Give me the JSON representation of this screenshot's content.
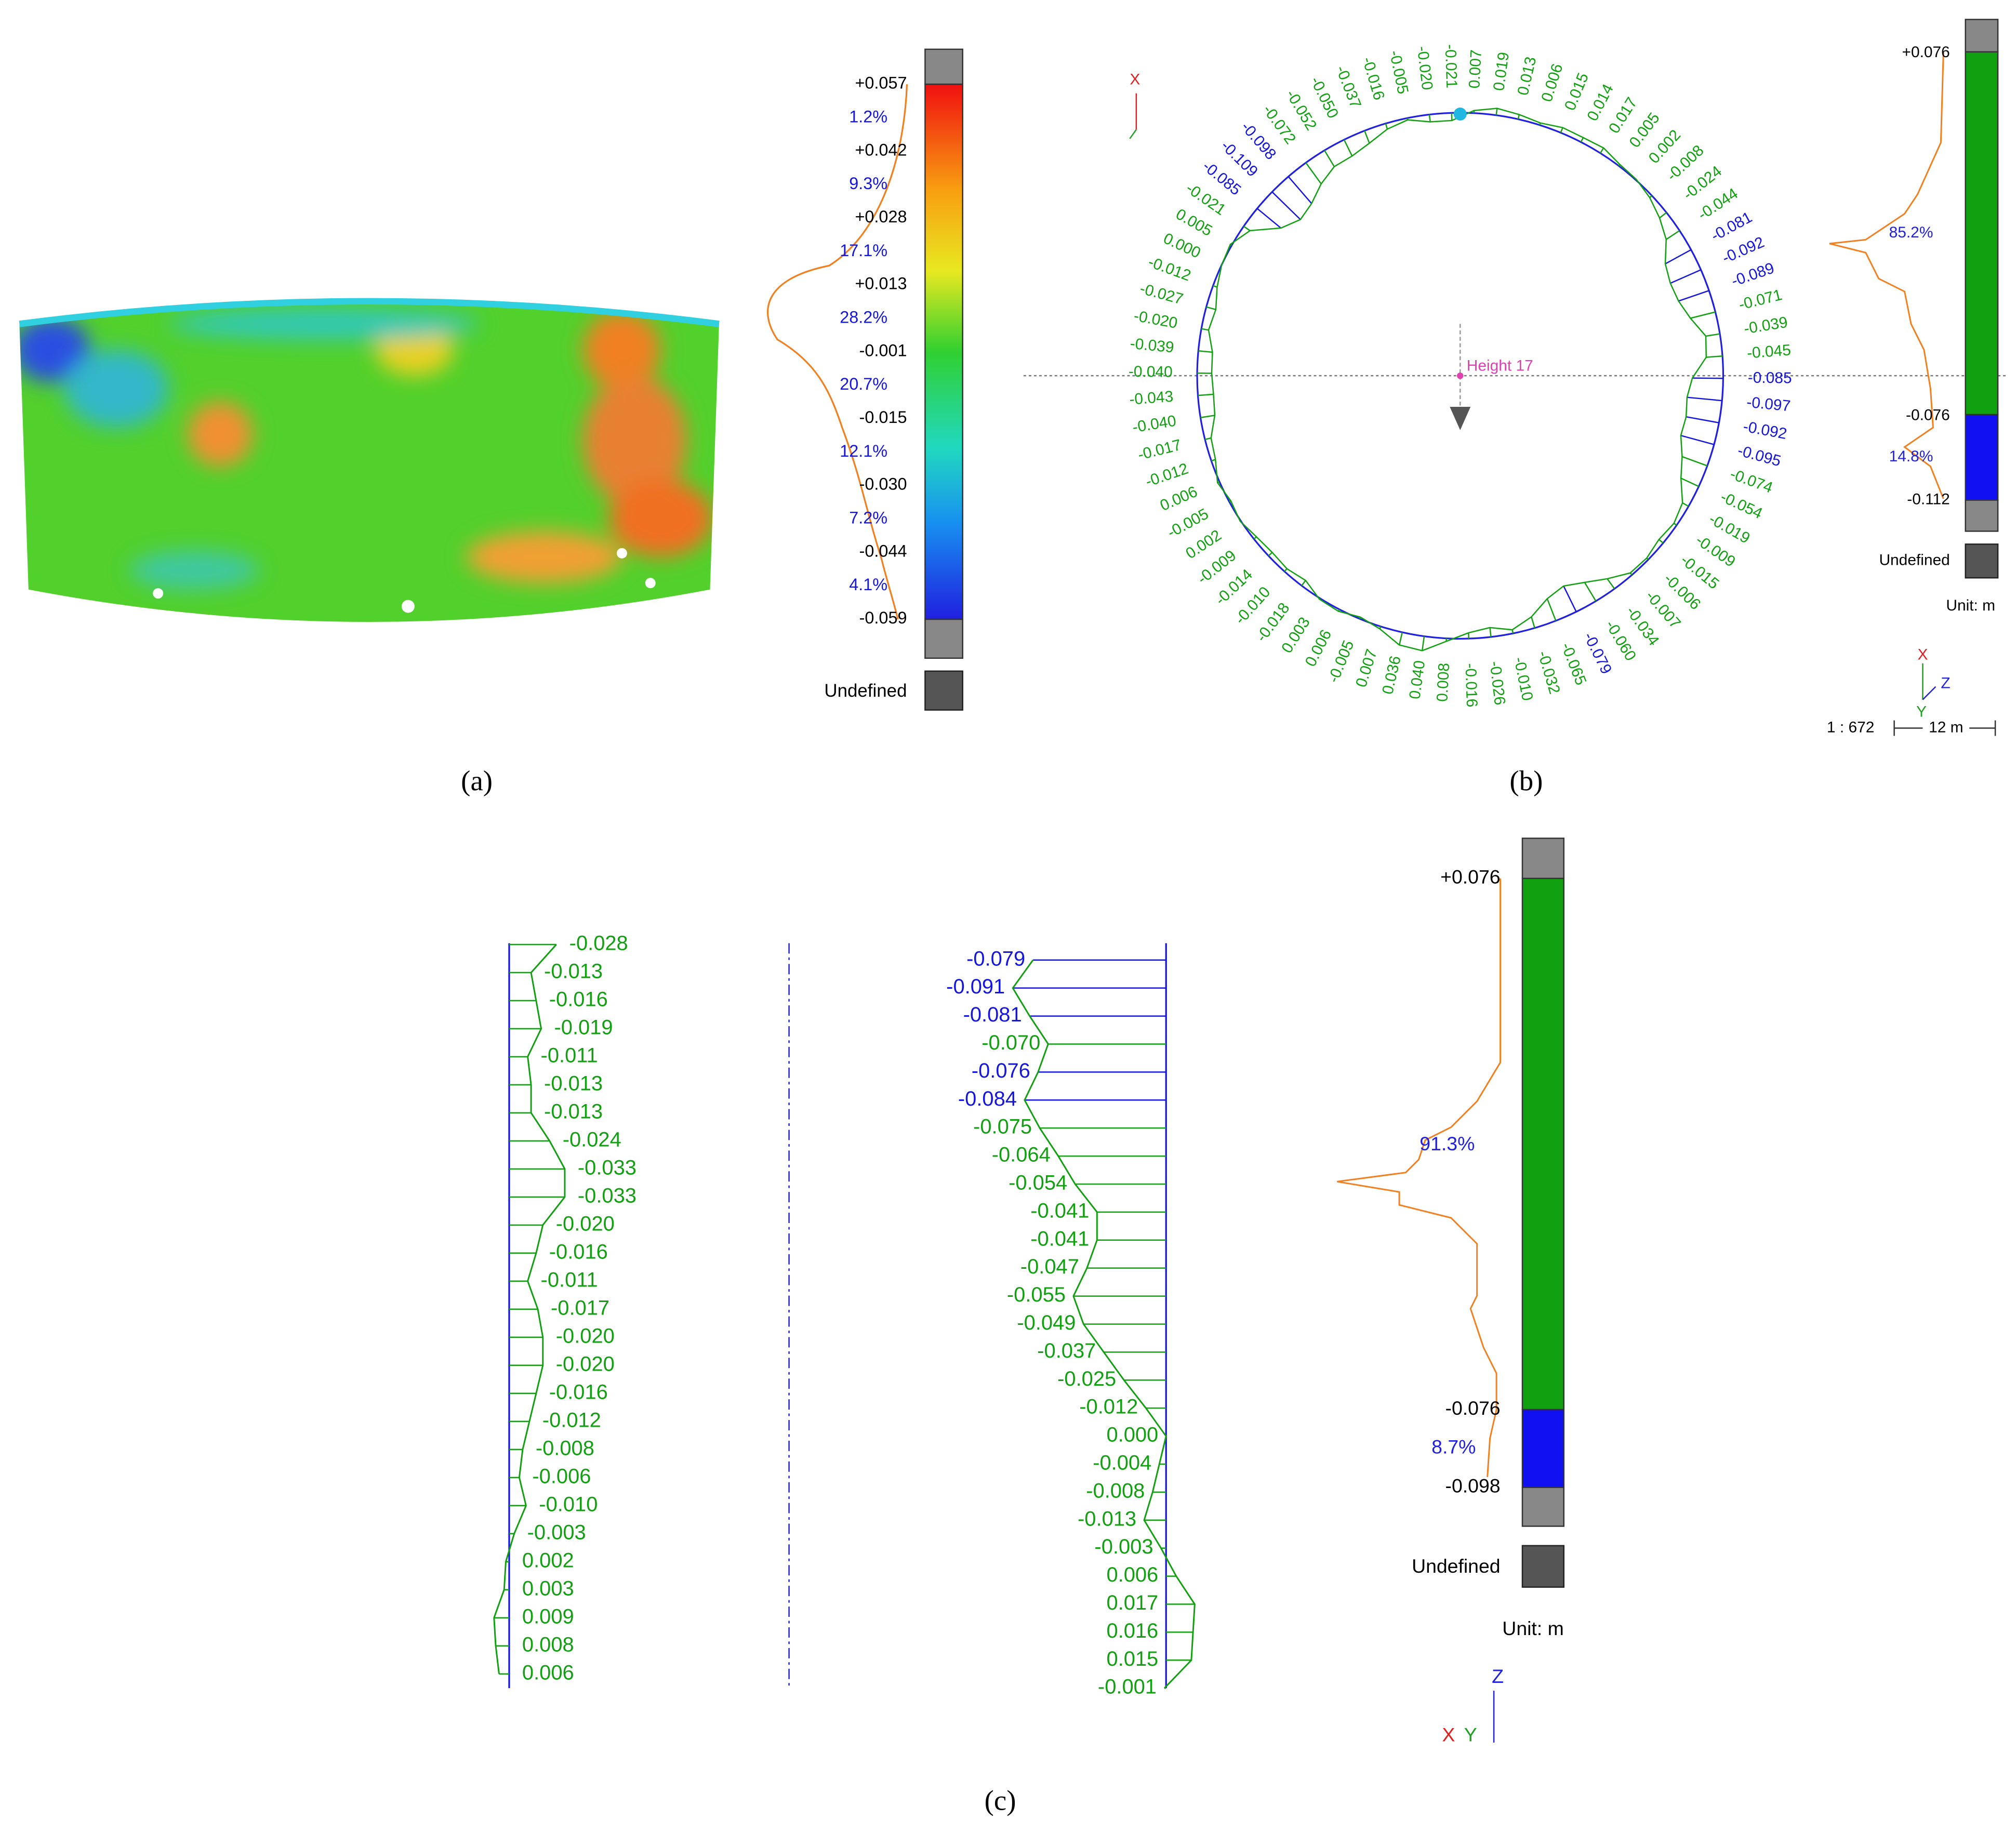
{
  "panel_a": {
    "caption": "(a)",
    "ticks": [
      "+0.057",
      "+0.042",
      "+0.028",
      "+0.013",
      "-0.001",
      "-0.015",
      "-0.030",
      "-0.044",
      "-0.059"
    ],
    "percentages": [
      "1.2%",
      "9.3%",
      "17.1%",
      "28.2%",
      "20.7%",
      "12.1%",
      "7.2%",
      "4.1%"
    ],
    "undefined": "Undefined"
  },
  "panel_b": {
    "caption": "(b)",
    "deviations": [
      "0.007",
      "0.019",
      "0.013",
      "0.006",
      "0.015",
      "0.014",
      "0.017",
      "0.005",
      "0.002",
      "-0.008",
      "-0.024",
      "-0.044",
      "-0.081",
      "-0.092",
      "-0.089",
      "-0.071",
      "-0.039",
      "-0.045",
      "-0.085",
      "-0.097",
      "-0.092",
      "-0.095",
      "-0.074",
      "-0.054",
      "-0.019",
      "-0.009",
      "-0.015",
      "-0.006",
      "-0.007",
      "-0.034",
      "-0.060",
      "-0.079",
      "-0.065",
      "-0.032",
      "-0.010",
      "-0.026",
      "-0.016",
      "0.008",
      "0.040",
      "0.036",
      "0.007",
      "-0.005",
      "0.006",
      "0.003",
      "-0.018",
      "-0.010",
      "-0.014",
      "-0.009",
      "0.002",
      "-0.005",
      "0.006",
      "-0.012",
      "-0.017",
      "-0.040",
      "-0.043",
      "-0.040",
      "-0.039",
      "-0.020",
      "-0.027",
      "-0.012",
      "0.000",
      "0.005",
      "-0.021",
      "-0.085",
      "-0.109",
      "-0.098",
      "-0.072",
      "-0.052",
      "-0.050",
      "-0.037",
      "-0.016",
      "-0.005",
      "-0.020",
      "-0.021"
    ],
    "height_label": "Height 17",
    "axis_label": "X",
    "legend": {
      "ticks": [
        "+0.076",
        "-0.076",
        "-0.112"
      ],
      "percentages": [
        "85.2%",
        "14.8%"
      ],
      "undefined": "Undefined",
      "unit": "Unit: m"
    },
    "triad": [
      "X",
      "Z",
      "Y"
    ],
    "scale": "1 : 672",
    "scale_bar": "12 m"
  },
  "panel_c": {
    "caption": "(c)",
    "left_profile": [
      "-0.028",
      "-0.013",
      "-0.016",
      "-0.019",
      "-0.011",
      "-0.013",
      "-0.013",
      "-0.024",
      "-0.033",
      "-0.033",
      "-0.020",
      "-0.016",
      "-0.011",
      "-0.017",
      "-0.020",
      "-0.020",
      "-0.016",
      "-0.012",
      "-0.008",
      "-0.006",
      "-0.010",
      "-0.003",
      "0.002",
      "0.003",
      "0.009",
      "0.008",
      "0.006"
    ],
    "right_profile": [
      "-0.079",
      "-0.091",
      "-0.081",
      "-0.070",
      "-0.076",
      "-0.084",
      "-0.075",
      "-0.064",
      "-0.054",
      "-0.041",
      "-0.041",
      "-0.047",
      "-0.055",
      "-0.049",
      "-0.037",
      "-0.025",
      "-0.012",
      "0.000",
      "-0.004",
      "-0.008",
      "-0.013",
      "-0.003",
      "0.006",
      "0.017",
      "0.016",
      "0.015",
      "-0.001"
    ],
    "legend": {
      "ticks": [
        "+0.076",
        "-0.076",
        "-0.098"
      ],
      "percentages": [
        "91.3%",
        "8.7%"
      ],
      "undefined": "Undefined",
      "unit": "Unit: m"
    },
    "triad": [
      "Z",
      "X",
      "Y"
    ]
  }
}
